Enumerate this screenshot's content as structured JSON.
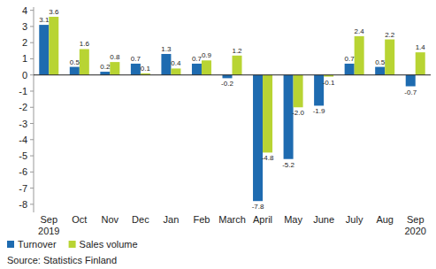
{
  "chart_data": {
    "type": "bar",
    "categories": [
      "Sep\n2019",
      "Oct",
      "Nov",
      "Dec",
      "Jan",
      "Feb",
      "March",
      "April",
      "May",
      "June",
      "July",
      "Aug",
      "Sep\n2020"
    ],
    "series": [
      {
        "name": "Turnover",
        "color": "#1e6bb0",
        "values": [
          3.1,
          0.5,
          0.2,
          0.7,
          1.3,
          0.7,
          -0.2,
          -7.8,
          -5.2,
          -1.9,
          0.7,
          0.5,
          -0.7
        ],
        "value_labels": [
          "3.1",
          "0.5",
          "0.2",
          "0.7",
          "1.3",
          "0.7",
          "-0.2",
          "-7.8",
          "-5.2",
          "-1.9",
          "0.7",
          "0.5",
          "-0.7"
        ]
      },
      {
        "name": "Sales volume",
        "color": "#b8d433",
        "values": [
          3.6,
          1.6,
          0.8,
          0.1,
          0.4,
          0.9,
          1.2,
          -4.8,
          -2.0,
          -0.1,
          2.4,
          2.2,
          1.4
        ],
        "value_labels": [
          "3.6",
          "1.6",
          "0.8",
          "0.1",
          "0.4",
          "0.9",
          "1.2",
          "-4.8",
          "-2.0",
          "-0.1",
          "2.4",
          "2.2",
          "1.4"
        ]
      }
    ],
    "ylim": [
      -8.5,
      4.2
    ],
    "yticks": [
      -8,
      -7,
      -6,
      -5,
      -4,
      -3,
      -2,
      -1,
      0,
      1,
      2,
      3,
      4
    ],
    "grid": false,
    "data_labels": true,
    "legend": "bottom-left",
    "source": "Source: Statistics Finland"
  }
}
